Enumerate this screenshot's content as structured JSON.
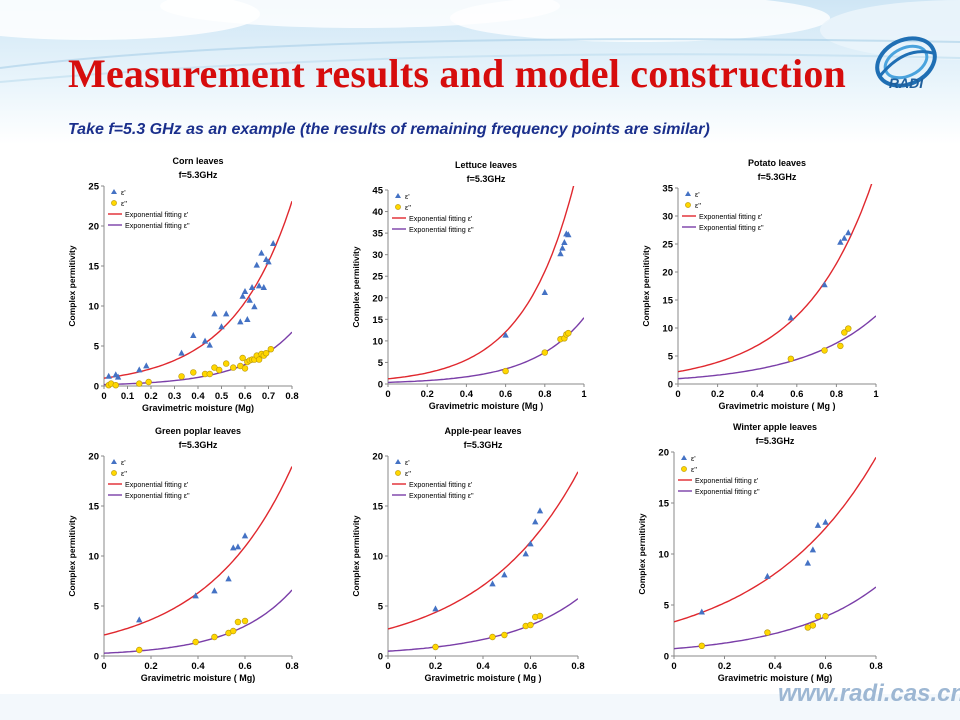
{
  "slide": {
    "title": "Measurement results and model construction",
    "subtitle": "Take f=5.3 GHz as an example  (the results of remaining frequency points are similar)",
    "logo_text": "RADI",
    "footer_url": "www.radi.cas.cn"
  },
  "colors": {
    "title": "#d60d0d",
    "subtitle": "#1a2f8c",
    "eps_real_marker": "#4472c4",
    "eps_imag_marker": "#ffd700",
    "fit_real_line": "#e0282e",
    "fit_imag_line": "#7a3ea8"
  },
  "chart_data": [
    {
      "type": "scatter",
      "title": "Corn leaves",
      "subtitle": "f=5.3GHz",
      "xlabel": "Gravimetric moisture (Mg)",
      "ylabel": "Complex permitivity",
      "xlim": [
        0,
        0.8
      ],
      "ylim": [
        0,
        25
      ],
      "xticks": [
        "0",
        "0.1",
        "0.2",
        "0.3",
        "0.4",
        "0.5",
        "0.6",
        "0.7",
        "0.8"
      ],
      "yticks": [
        "0",
        "5",
        "10",
        "15",
        "20",
        "25"
      ],
      "legend": [
        "ε'",
        "ε''",
        "Exponential fitting ε'",
        "Exponential fitting ε''"
      ],
      "legend_position": "top-left",
      "series": [
        {
          "name": "ε'",
          "marker": "triangle",
          "points": [
            [
              0.02,
              1.2
            ],
            [
              0.05,
              1.4
            ],
            [
              0.06,
              1.1
            ],
            [
              0.15,
              2.0
            ],
            [
              0.18,
              2.5
            ],
            [
              0.33,
              4.1
            ],
            [
              0.38,
              6.3
            ],
            [
              0.43,
              5.6
            ],
            [
              0.45,
              5.1
            ],
            [
              0.47,
              9.0
            ],
            [
              0.5,
              7.4
            ],
            [
              0.52,
              9.0
            ],
            [
              0.58,
              8.0
            ],
            [
              0.59,
              11.2
            ],
            [
              0.6,
              11.8
            ],
            [
              0.61,
              8.3
            ],
            [
              0.62,
              10.7
            ],
            [
              0.63,
              12.3
            ],
            [
              0.64,
              9.9
            ],
            [
              0.65,
              15.1
            ],
            [
              0.66,
              12.5
            ],
            [
              0.67,
              16.6
            ],
            [
              0.68,
              12.3
            ],
            [
              0.69,
              15.8
            ],
            [
              0.7,
              15.5
            ],
            [
              0.72,
              17.8
            ]
          ]
        },
        {
          "name": "ε''",
          "marker": "circle",
          "points": [
            [
              0.02,
              0.1
            ],
            [
              0.03,
              0.3
            ],
            [
              0.05,
              0.1
            ],
            [
              0.15,
              0.3
            ],
            [
              0.19,
              0.5
            ],
            [
              0.33,
              1.2
            ],
            [
              0.38,
              1.7
            ],
            [
              0.43,
              1.5
            ],
            [
              0.45,
              1.5
            ],
            [
              0.47,
              2.3
            ],
            [
              0.49,
              2.0
            ],
            [
              0.52,
              2.8
            ],
            [
              0.55,
              2.3
            ],
            [
              0.58,
              2.5
            ],
            [
              0.59,
              3.5
            ],
            [
              0.6,
              2.2
            ],
            [
              0.61,
              3.0
            ],
            [
              0.62,
              3.2
            ],
            [
              0.63,
              3.3
            ],
            [
              0.64,
              3.3
            ],
            [
              0.65,
              3.8
            ],
            [
              0.66,
              3.3
            ],
            [
              0.67,
              4.0
            ],
            [
              0.68,
              3.8
            ],
            [
              0.69,
              4.1
            ],
            [
              0.71,
              4.6
            ]
          ]
        },
        {
          "name": "Exponential fitting ε'",
          "type": "line",
          "a": 0.98,
          "b": 3.95
        },
        {
          "name": "Exponential fitting ε''",
          "type": "line",
          "a": 0.17,
          "b": 4.6
        }
      ]
    },
    {
      "type": "scatter",
      "title": "Lettuce leaves",
      "subtitle": "f=5.3GHz",
      "xlabel": "Gravimetric moisture (Mg )",
      "ylabel": "Complex permitivity",
      "xlim": [
        0,
        1
      ],
      "ylim": [
        0,
        45
      ],
      "xticks": [
        "0",
        "0.2",
        "0.4",
        "0.6",
        "0.8",
        "1"
      ],
      "yticks": [
        "0",
        "5",
        "10",
        "15",
        "20",
        "25",
        "30",
        "35",
        "40",
        "45"
      ],
      "legend": [
        "ε'",
        "ε''",
        "Exponential fitting ε'",
        "Exponential fitting ε''"
      ],
      "legend_position": "top-left",
      "series": [
        {
          "name": "ε'",
          "marker": "triangle",
          "points": [
            [
              0.6,
              11.3
            ],
            [
              0.8,
              21.2
            ],
            [
              0.88,
              30.2
            ],
            [
              0.89,
              31.5
            ],
            [
              0.9,
              32.8
            ],
            [
              0.91,
              34.8
            ],
            [
              0.92,
              34.6
            ]
          ]
        },
        {
          "name": "ε''",
          "marker": "circle",
          "points": [
            [
              0.6,
              3.0
            ],
            [
              0.8,
              7.3
            ],
            [
              0.88,
              10.4
            ],
            [
              0.9,
              10.6
            ],
            [
              0.91,
              11.5
            ],
            [
              0.92,
              11.8
            ]
          ]
        },
        {
          "name": "Exponential fitting ε'",
          "type": "line",
          "a": 1.2,
          "b": 3.85
        },
        {
          "name": "Exponential fitting ε''",
          "type": "line",
          "a": 0.38,
          "b": 3.7
        }
      ]
    },
    {
      "type": "scatter",
      "title": "Potato leaves",
      "subtitle": "f=5.3GHz",
      "xlabel": "Gravimetric moisture ( Mg )",
      "ylabel": "Complex permitivity",
      "xlim": [
        0,
        1
      ],
      "ylim": [
        0,
        35
      ],
      "xticks": [
        "0",
        "0.2",
        "0.4",
        "0.6",
        "0.8",
        "1"
      ],
      "yticks": [
        "0",
        "5",
        "10",
        "15",
        "20",
        "25",
        "30",
        "35"
      ],
      "legend": [
        "ε'",
        "ε''",
        "Exponential fitting ε'",
        "Exponential fitting ε''"
      ],
      "legend_position": "top-left",
      "series": [
        {
          "name": "ε'",
          "marker": "triangle",
          "points": [
            [
              0.57,
              11.8
            ],
            [
              0.74,
              17.7
            ],
            [
              0.82,
              25.3
            ],
            [
              0.84,
              26.0
            ],
            [
              0.86,
              27.0
            ]
          ]
        },
        {
          "name": "ε''",
          "marker": "circle",
          "points": [
            [
              0.57,
              4.5
            ],
            [
              0.74,
              6.0
            ],
            [
              0.82,
              6.8
            ],
            [
              0.84,
              9.2
            ],
            [
              0.86,
              9.9
            ]
          ]
        },
        {
          "name": "Exponential fitting ε'",
          "type": "line",
          "a": 2.2,
          "b": 2.85
        },
        {
          "name": "Exponential fitting ε''",
          "type": "line",
          "a": 0.95,
          "b": 2.55
        }
      ]
    },
    {
      "type": "scatter",
      "title": "Green poplar leaves",
      "subtitle": "f=5.3GHz",
      "xlabel": "Gravimetric moisture ( Mg)",
      "ylabel": "Complex permitivity",
      "xlim": [
        0,
        0.8
      ],
      "ylim": [
        0,
        20
      ],
      "xticks": [
        "0",
        "0.2",
        "0.4",
        "0.6",
        "0.8"
      ],
      "yticks": [
        "0",
        "5",
        "10",
        "15",
        "20"
      ],
      "legend": [
        "ε'",
        "ε''",
        "Exponential fitting ε'",
        "Exponential fitting ε''"
      ],
      "legend_position": "top-left",
      "series": [
        {
          "name": "ε'",
          "marker": "triangle",
          "points": [
            [
              0.15,
              3.6
            ],
            [
              0.39,
              6.0
            ],
            [
              0.47,
              6.5
            ],
            [
              0.53,
              7.7
            ],
            [
              0.55,
              10.8
            ],
            [
              0.57,
              10.9
            ],
            [
              0.6,
              12.0
            ]
          ]
        },
        {
          "name": "ε''",
          "marker": "circle",
          "points": [
            [
              0.15,
              0.6
            ],
            [
              0.39,
              1.4
            ],
            [
              0.47,
              1.9
            ],
            [
              0.53,
              2.3
            ],
            [
              0.55,
              2.5
            ],
            [
              0.57,
              3.4
            ],
            [
              0.6,
              3.5
            ]
          ]
        },
        {
          "name": "Exponential fitting ε'",
          "type": "line",
          "a": 2.1,
          "b": 2.75
        },
        {
          "name": "Exponential fitting ε''",
          "type": "line",
          "a": 0.28,
          "b": 3.95
        }
      ]
    },
    {
      "type": "scatter",
      "title": "Apple-pear leaves",
      "subtitle": "f=5.3GHz",
      "xlabel": "Gravimetric moisture ( Mg )",
      "ylabel": "Complex permitivity",
      "xlim": [
        0,
        0.8
      ],
      "ylim": [
        0,
        20
      ],
      "xticks": [
        "0",
        "0.2",
        "0.4",
        "0.6",
        "0.8"
      ],
      "yticks": [
        "0",
        "5",
        "10",
        "15",
        "20"
      ],
      "legend": [
        "ε'",
        "ε''",
        "Exponential fitting ε'",
        "Exponential fitting ε''"
      ],
      "legend_position": "top-left",
      "series": [
        {
          "name": "ε'",
          "marker": "triangle",
          "points": [
            [
              0.2,
              4.7
            ],
            [
              0.44,
              7.2
            ],
            [
              0.49,
              8.1
            ],
            [
              0.58,
              10.2
            ],
            [
              0.6,
              11.2
            ],
            [
              0.62,
              13.4
            ],
            [
              0.64,
              14.5
            ]
          ]
        },
        {
          "name": "ε''",
          "marker": "circle",
          "points": [
            [
              0.2,
              0.9
            ],
            [
              0.44,
              1.9
            ],
            [
              0.49,
              2.1
            ],
            [
              0.58,
              3.0
            ],
            [
              0.6,
              3.1
            ],
            [
              0.62,
              3.9
            ],
            [
              0.64,
              4.0
            ]
          ]
        },
        {
          "name": "Exponential fitting ε'",
          "type": "line",
          "a": 2.7,
          "b": 2.4
        },
        {
          "name": "Exponential fitting ε''",
          "type": "line",
          "a": 0.48,
          "b": 3.1
        }
      ]
    },
    {
      "type": "scatter",
      "title": "Winter apple leaves",
      "subtitle": "f=5.3GHz",
      "xlabel": "Gravimetric moisture ( Mg)",
      "ylabel": "Complex permitivity",
      "xlim": [
        0,
        0.8
      ],
      "ylim": [
        0,
        20
      ],
      "xticks": [
        "0",
        "0.2",
        "0.4",
        "0.6",
        "0.8"
      ],
      "yticks": [
        "0",
        "5",
        "10",
        "15",
        "20"
      ],
      "legend": [
        "ε'",
        "ε''",
        "Exponential fitting ε'",
        "Exponential fitting ε''"
      ],
      "legend_position": "top-left",
      "series": [
        {
          "name": "ε'",
          "marker": "triangle",
          "points": [
            [
              0.11,
              4.3
            ],
            [
              0.37,
              7.8
            ],
            [
              0.53,
              9.1
            ],
            [
              0.55,
              10.4
            ],
            [
              0.57,
              12.8
            ],
            [
              0.6,
              13.1
            ]
          ]
        },
        {
          "name": "ε''",
          "marker": "circle",
          "points": [
            [
              0.11,
              1.0
            ],
            [
              0.37,
              2.3
            ],
            [
              0.53,
              2.8
            ],
            [
              0.55,
              3.0
            ],
            [
              0.57,
              3.9
            ],
            [
              0.6,
              3.9
            ]
          ]
        },
        {
          "name": "Exponential fitting ε'",
          "type": "line",
          "a": 3.35,
          "b": 2.2
        },
        {
          "name": "Exponential fitting ε''",
          "type": "line",
          "a": 0.72,
          "b": 2.8
        }
      ]
    }
  ]
}
